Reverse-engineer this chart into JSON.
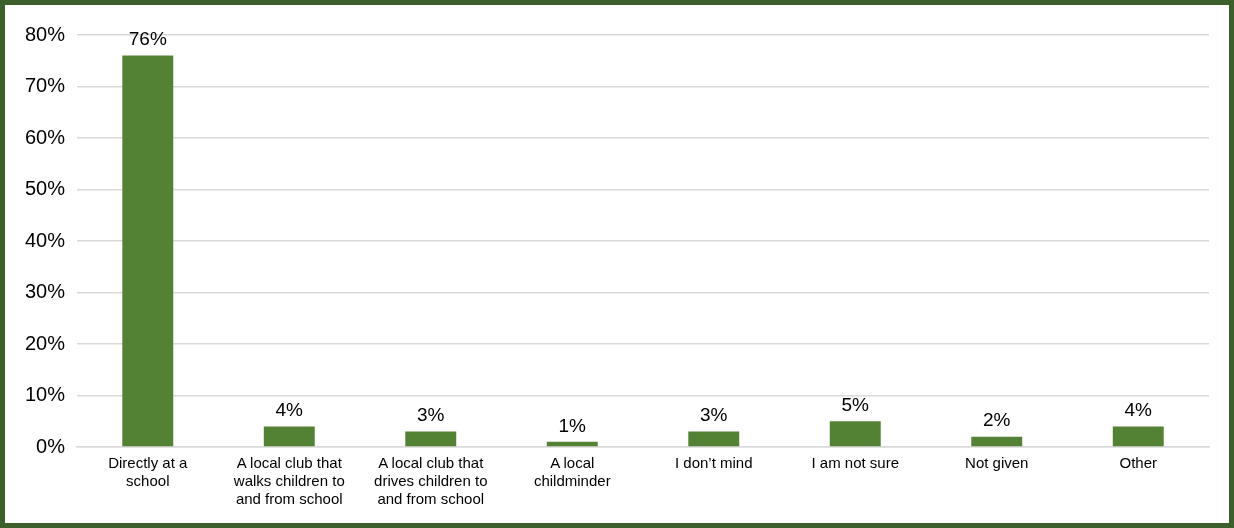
{
  "chart_data": {
    "type": "bar",
    "categories": [
      "Directly at a school",
      "A local club that walks children to and from school",
      "A local club that drives children to and from school",
      "A local childminder",
      "I don’t mind",
      "I am not sure",
      "Not given",
      "Other"
    ],
    "values": [
      76,
      4,
      3,
      1,
      3,
      5,
      2,
      4
    ],
    "value_labels": [
      "76%",
      "4%",
      "3%",
      "1%",
      "3%",
      "5%",
      "2%",
      "4%"
    ],
    "color": "#548235",
    "ylim": [
      0,
      80
    ],
    "yticks": [
      {
        "value": 0,
        "label": "0%"
      },
      {
        "value": 10,
        "label": "10%"
      },
      {
        "value": 20,
        "label": "20%"
      },
      {
        "value": 30,
        "label": "30%"
      },
      {
        "value": 40,
        "label": "40%"
      },
      {
        "value": 50,
        "label": "50%"
      },
      {
        "value": 60,
        "label": "60%"
      },
      {
        "value": 70,
        "label": "70%"
      },
      {
        "value": 80,
        "label": "80%"
      }
    ],
    "grid": "y",
    "legend": false
  }
}
